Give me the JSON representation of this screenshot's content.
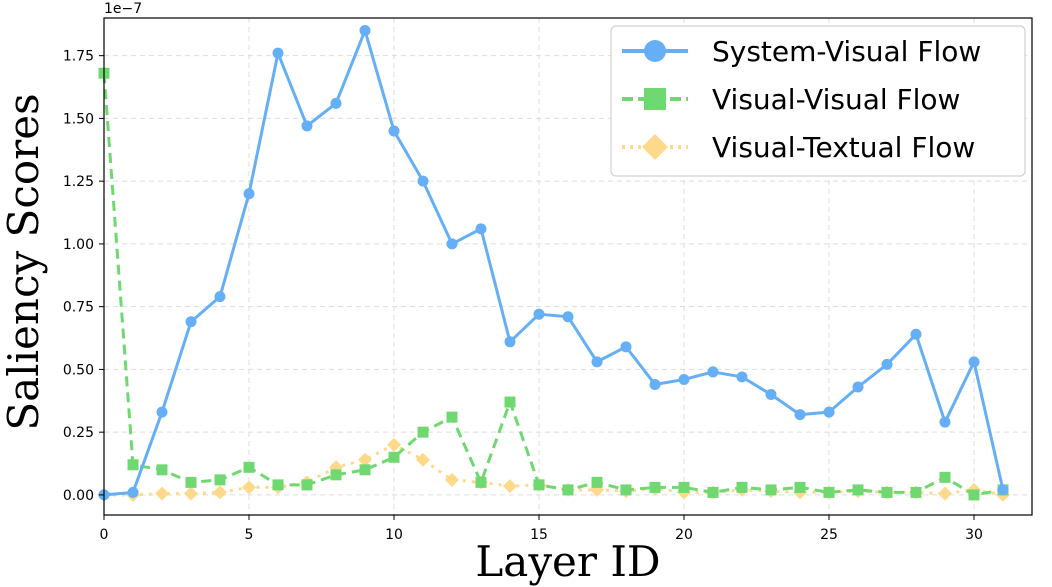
{
  "chart_data": {
    "type": "line",
    "xlabel": "Layer ID",
    "ylabel": "Saliency Scores",
    "y_offset_label": "1e−7",
    "xlim": [
      0,
      32
    ],
    "ylim": [
      -0.08,
      1.9
    ],
    "x_ticks": [
      0,
      5,
      10,
      15,
      20,
      25,
      30
    ],
    "x_tick_labels": [
      "0",
      "5",
      "10",
      "15",
      "20",
      "25",
      "30"
    ],
    "y_ticks": [
      0,
      0.25,
      0.5,
      0.75,
      1.0,
      1.25,
      1.5,
      1.75
    ],
    "y_tick_labels": [
      "0.00",
      "0.25",
      "0.50",
      "0.75",
      "1.00",
      "1.25",
      "1.50",
      "1.75"
    ],
    "grid": true,
    "legend_position": "top-right",
    "x": [
      0,
      1,
      2,
      3,
      4,
      5,
      6,
      7,
      8,
      9,
      10,
      11,
      12,
      13,
      14,
      15,
      16,
      17,
      18,
      19,
      20,
      21,
      22,
      23,
      24,
      25,
      26,
      27,
      28,
      29,
      30,
      31
    ],
    "series": [
      {
        "name": "System-Visual Flow",
        "color": "#64aff5",
        "marker": "circle",
        "dash": "solid",
        "values": [
          0.0,
          0.01,
          0.33,
          0.69,
          0.79,
          1.2,
          1.76,
          1.47,
          1.56,
          1.85,
          1.45,
          1.25,
          1.0,
          1.06,
          0.61,
          0.72,
          0.71,
          0.53,
          0.59,
          0.44,
          0.46,
          0.49,
          0.47,
          0.4,
          0.32,
          0.33,
          0.43,
          0.52,
          0.64,
          0.29,
          0.53,
          0.02
        ]
      },
      {
        "name": "Visual-Visual Flow",
        "color": "#70d870",
        "marker": "square",
        "dash": "dashed",
        "values": [
          1.68,
          0.12,
          0.1,
          0.05,
          0.06,
          0.11,
          0.04,
          0.04,
          0.08,
          0.1,
          0.15,
          0.25,
          0.31,
          0.05,
          0.37,
          0.04,
          0.02,
          0.05,
          0.02,
          0.03,
          0.03,
          0.01,
          0.03,
          0.02,
          0.03,
          0.01,
          0.02,
          0.01,
          0.01,
          0.07,
          0.0,
          0.02
        ]
      },
      {
        "name": "Visual-Textual Flow",
        "color": "#ffd98a",
        "marker": "diamond",
        "dash": "dotted",
        "values": [
          0.0,
          0.0,
          0.005,
          0.005,
          0.01,
          0.03,
          0.03,
          0.05,
          0.11,
          0.14,
          0.2,
          0.14,
          0.06,
          0.05,
          0.035,
          0.04,
          0.02,
          0.02,
          0.015,
          0.025,
          0.01,
          0.01,
          0.02,
          0.015,
          0.01,
          0.01,
          0.015,
          0.01,
          0.01,
          0.005,
          0.02,
          0.0
        ]
      }
    ]
  }
}
